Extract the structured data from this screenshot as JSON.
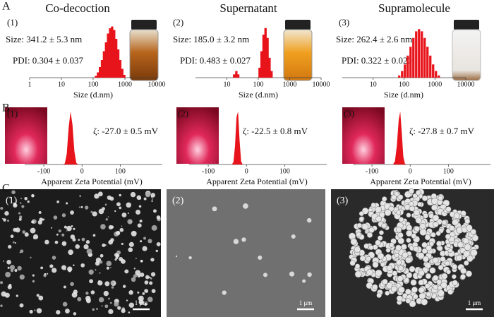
{
  "panel_labels": [
    "A",
    "B",
    "C"
  ],
  "chart_data": [
    {
      "type": "bar",
      "title": "Co-decoction",
      "label": "(1)",
      "annotations": [
        "Size: 341.2 ± 5.3 nm",
        "PDI: 0.304 ± 0.037"
      ],
      "x_label": "Size (d.nm)",
      "color": "#e8141b",
      "log_x": true,
      "x": [
        122,
        142,
        164,
        190,
        220,
        255,
        295,
        342,
        396,
        459,
        531,
        615,
        712,
        825,
        955
      ],
      "values": [
        0.5,
        1.5,
        3,
        5,
        7.5,
        10,
        12.5,
        14,
        14.5,
        13.5,
        11,
        8,
        5,
        2.5,
        0.8
      ],
      "xlim": [
        1,
        10000
      ],
      "xticks": [
        1,
        10,
        100,
        1000,
        10000
      ],
      "ylim": [
        0,
        15
      ]
    },
    {
      "type": "bar",
      "title": "Supernatant",
      "label": "(2)",
      "annotations": [
        "Size: 185.0 ± 3.2 nm",
        "PDI: 0.483 ± 0.027"
      ],
      "x_label": "Size (d.nm)",
      "color": "#e8141b",
      "log_x": true,
      "x": [
        17,
        20,
        23,
        110,
        127,
        147,
        170,
        197,
        228,
        264
      ],
      "values": [
        1,
        2,
        1,
        3,
        8,
        13,
        15,
        12,
        6,
        2
      ],
      "xlim": [
        1,
        10000
      ],
      "xticks": [
        10,
        100,
        1000,
        10000
      ],
      "ylim": [
        0,
        16
      ]
    },
    {
      "type": "bar",
      "title": "Supramolecule",
      "label": "(3)",
      "annotations": [
        "Size: 262.4 ± 2.6 nm",
        "PDI: 0.322 ± 0.020"
      ],
      "x_label": "Size (d.nm)",
      "color": "#e8141b",
      "log_x": true,
      "x": [
        70,
        87,
        107,
        132,
        163,
        201,
        248,
        306,
        378,
        466,
        575,
        710,
        876,
        1081,
        1334
      ],
      "values": [
        0.5,
        1.5,
        3,
        5,
        7,
        9,
        10.5,
        11,
        10.5,
        9,
        7,
        5,
        3,
        1.5,
        0.5
      ],
      "xlim": [
        1,
        10000
      ],
      "xticks": [
        10,
        100,
        1000,
        10000
      ],
      "ylim": [
        0,
        12
      ]
    },
    {
      "type": "area",
      "label": "(1)",
      "annotations": [
        "ζ: -27.0 ± 0.5 mV"
      ],
      "x_label": "Apparent Zeta Potential (mV)",
      "color": "#e8141b",
      "log_x": false,
      "x": [
        -50,
        -45,
        -40,
        -35,
        -30,
        -25,
        -20,
        -15,
        -10
      ],
      "values": [
        0,
        2,
        20,
        70,
        100,
        75,
        25,
        3,
        0
      ],
      "xlim": [
        -150,
        210
      ],
      "xticks": [
        -100,
        0,
        100
      ],
      "ylim": [
        0,
        100
      ]
    },
    {
      "type": "area",
      "label": "(2)",
      "annotations": [
        "ζ: -22.5 ± 0.8 mV"
      ],
      "x_label": "Apparent Zeta Potential (mV)",
      "color": "#e8141b",
      "log_x": false,
      "x": [
        -38,
        -34,
        -30,
        -26,
        -22,
        -18,
        -14,
        -10
      ],
      "values": [
        0,
        5,
        35,
        90,
        100,
        45,
        6,
        0
      ],
      "xlim": [
        -150,
        210
      ],
      "xticks": [
        -100,
        0,
        100
      ],
      "ylim": [
        0,
        100
      ]
    },
    {
      "type": "area",
      "label": "(3)",
      "annotations": [
        "ζ: -27.8 ± 0.7 mV"
      ],
      "x_label": "Apparent Zeta Potential (mV)",
      "color": "#e8141b",
      "log_x": false,
      "x": [
        -45,
        -40,
        -35,
        -30,
        -26,
        -22,
        -18,
        -14,
        -10
      ],
      "values": [
        0,
        6,
        35,
        85,
        100,
        60,
        15,
        2,
        0
      ],
      "xlim": [
        -150,
        210
      ],
      "xticks": [
        -100,
        0,
        100
      ],
      "ylim": [
        0,
        100
      ]
    }
  ],
  "sem_images": [
    {
      "label": "(1)",
      "scale_bar": "1 μm"
    },
    {
      "label": "(2)",
      "scale_bar": "1 μm"
    },
    {
      "label": "(3)",
      "scale_bar": "1 μm"
    }
  ]
}
